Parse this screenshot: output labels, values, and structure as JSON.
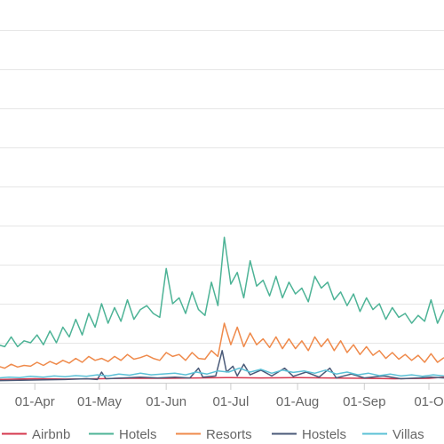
{
  "chart_data": {
    "type": "line",
    "title": "",
    "xlabel": "",
    "ylabel": "",
    "grid": true,
    "legend_position": "bottom",
    "x_range": [
      "2023-03-15",
      "2023-10-08"
    ],
    "ylim": [
      0,
      1000
    ],
    "y_ticks": [
      100,
      200,
      300,
      400,
      500,
      600,
      700,
      800,
      900,
      1000
    ],
    "x_ticks": [
      {
        "date": "2023-04-01",
        "label": "01-Apr"
      },
      {
        "date": "2023-05-01",
        "label": "01-May"
      },
      {
        "date": "2023-06-01",
        "label": "01-Jun"
      },
      {
        "date": "2023-07-01",
        "label": "01-Jul"
      },
      {
        "date": "2023-08-01",
        "label": "01-Aug"
      },
      {
        "date": "2023-09-01",
        "label": "01-Sep"
      },
      {
        "date": "2023-10-01",
        "label": "01-O"
      }
    ],
    "series": [
      {
        "name": "Airbnb",
        "color": "#d6374e",
        "points": [
          [
            "2023-03-15",
            6
          ],
          [
            "2023-04-01",
            8
          ],
          [
            "2023-04-15",
            7
          ],
          [
            "2023-05-01",
            8
          ],
          [
            "2023-05-15",
            9
          ],
          [
            "2023-06-01",
            9
          ],
          [
            "2023-06-15",
            10
          ],
          [
            "2023-07-01",
            11
          ],
          [
            "2023-07-15",
            10
          ],
          [
            "2023-08-01",
            11
          ],
          [
            "2023-08-15",
            10
          ],
          [
            "2023-09-01",
            9
          ],
          [
            "2023-09-15",
            8
          ],
          [
            "2023-10-01",
            9
          ],
          [
            "2023-10-08",
            12
          ]
        ]
      },
      {
        "name": "Hotels",
        "color": "#4db396",
        "points": [
          [
            "2023-03-15",
            95
          ],
          [
            "2023-03-18",
            90
          ],
          [
            "2023-03-21",
            115
          ],
          [
            "2023-03-24",
            90
          ],
          [
            "2023-03-27",
            105
          ],
          [
            "2023-03-30",
            100
          ],
          [
            "2023-04-02",
            120
          ],
          [
            "2023-04-05",
            95
          ],
          [
            "2023-04-08",
            130
          ],
          [
            "2023-04-11",
            100
          ],
          [
            "2023-04-14",
            140
          ],
          [
            "2023-04-17",
            115
          ],
          [
            "2023-04-20",
            160
          ],
          [
            "2023-04-23",
            120
          ],
          [
            "2023-04-26",
            175
          ],
          [
            "2023-04-29",
            140
          ],
          [
            "2023-05-02",
            200
          ],
          [
            "2023-05-05",
            150
          ],
          [
            "2023-05-08",
            190
          ],
          [
            "2023-05-11",
            155
          ],
          [
            "2023-05-14",
            210
          ],
          [
            "2023-05-17",
            160
          ],
          [
            "2023-05-20",
            185
          ],
          [
            "2023-05-23",
            195
          ],
          [
            "2023-05-26",
            175
          ],
          [
            "2023-05-29",
            165
          ],
          [
            "2023-06-01",
            290
          ],
          [
            "2023-06-04",
            200
          ],
          [
            "2023-06-07",
            215
          ],
          [
            "2023-06-10",
            175
          ],
          [
            "2023-06-13",
            230
          ],
          [
            "2023-06-16",
            185
          ],
          [
            "2023-06-19",
            170
          ],
          [
            "2023-06-22",
            255
          ],
          [
            "2023-06-25",
            195
          ],
          [
            "2023-06-28",
            370
          ],
          [
            "2023-07-01",
            250
          ],
          [
            "2023-07-04",
            280
          ],
          [
            "2023-07-07",
            215
          ],
          [
            "2023-07-10",
            310
          ],
          [
            "2023-07-13",
            245
          ],
          [
            "2023-07-16",
            260
          ],
          [
            "2023-07-19",
            220
          ],
          [
            "2023-07-22",
            270
          ],
          [
            "2023-07-25",
            215
          ],
          [
            "2023-07-28",
            255
          ],
          [
            "2023-07-31",
            225
          ],
          [
            "2023-08-03",
            240
          ],
          [
            "2023-08-06",
            205
          ],
          [
            "2023-08-09",
            270
          ],
          [
            "2023-08-12",
            240
          ],
          [
            "2023-08-15",
            255
          ],
          [
            "2023-08-18",
            210
          ],
          [
            "2023-08-21",
            230
          ],
          [
            "2023-08-24",
            195
          ],
          [
            "2023-08-27",
            225
          ],
          [
            "2023-08-30",
            180
          ],
          [
            "2023-09-02",
            215
          ],
          [
            "2023-09-05",
            185
          ],
          [
            "2023-09-08",
            200
          ],
          [
            "2023-09-11",
            160
          ],
          [
            "2023-09-14",
            190
          ],
          [
            "2023-09-17",
            165
          ],
          [
            "2023-09-20",
            175
          ],
          [
            "2023-09-23",
            150
          ],
          [
            "2023-09-26",
            170
          ],
          [
            "2023-09-29",
            155
          ],
          [
            "2023-10-02",
            210
          ],
          [
            "2023-10-05",
            150
          ],
          [
            "2023-10-08",
            185
          ]
        ]
      },
      {
        "name": "Resorts",
        "color": "#ef8a4b",
        "points": [
          [
            "2023-03-15",
            40
          ],
          [
            "2023-03-18",
            35
          ],
          [
            "2023-03-21",
            45
          ],
          [
            "2023-03-24",
            38
          ],
          [
            "2023-03-27",
            42
          ],
          [
            "2023-03-30",
            40
          ],
          [
            "2023-04-02",
            50
          ],
          [
            "2023-04-05",
            42
          ],
          [
            "2023-04-08",
            52
          ],
          [
            "2023-04-11",
            45
          ],
          [
            "2023-04-14",
            55
          ],
          [
            "2023-04-17",
            48
          ],
          [
            "2023-04-20",
            60
          ],
          [
            "2023-04-23",
            50
          ],
          [
            "2023-04-26",
            65
          ],
          [
            "2023-04-29",
            55
          ],
          [
            "2023-05-02",
            60
          ],
          [
            "2023-05-05",
            52
          ],
          [
            "2023-05-08",
            65
          ],
          [
            "2023-05-11",
            55
          ],
          [
            "2023-05-14",
            70
          ],
          [
            "2023-05-17",
            58
          ],
          [
            "2023-05-20",
            62
          ],
          [
            "2023-05-23",
            68
          ],
          [
            "2023-05-26",
            60
          ],
          [
            "2023-05-29",
            55
          ],
          [
            "2023-06-01",
            75
          ],
          [
            "2023-06-04",
            65
          ],
          [
            "2023-06-07",
            70
          ],
          [
            "2023-06-10",
            55
          ],
          [
            "2023-06-13",
            75
          ],
          [
            "2023-06-16",
            60
          ],
          [
            "2023-06-19",
            58
          ],
          [
            "2023-06-22",
            80
          ],
          [
            "2023-06-25",
            65
          ],
          [
            "2023-06-28",
            150
          ],
          [
            "2023-07-01",
            95
          ],
          [
            "2023-07-04",
            140
          ],
          [
            "2023-07-07",
            90
          ],
          [
            "2023-07-10",
            125
          ],
          [
            "2023-07-13",
            95
          ],
          [
            "2023-07-16",
            110
          ],
          [
            "2023-07-19",
            88
          ],
          [
            "2023-07-22",
            115
          ],
          [
            "2023-07-25",
            85
          ],
          [
            "2023-07-28",
            110
          ],
          [
            "2023-07-31",
            85
          ],
          [
            "2023-08-03",
            105
          ],
          [
            "2023-08-06",
            80
          ],
          [
            "2023-08-09",
            115
          ],
          [
            "2023-08-12",
            90
          ],
          [
            "2023-08-15",
            110
          ],
          [
            "2023-08-18",
            80
          ],
          [
            "2023-08-21",
            105
          ],
          [
            "2023-08-24",
            75
          ],
          [
            "2023-08-27",
            95
          ],
          [
            "2023-08-30",
            70
          ],
          [
            "2023-09-02",
            90
          ],
          [
            "2023-09-05",
            68
          ],
          [
            "2023-09-08",
            80
          ],
          [
            "2023-09-11",
            60
          ],
          [
            "2023-09-14",
            75
          ],
          [
            "2023-09-17",
            58
          ],
          [
            "2023-09-20",
            70
          ],
          [
            "2023-09-23",
            55
          ],
          [
            "2023-09-26",
            68
          ],
          [
            "2023-09-29",
            50
          ],
          [
            "2023-10-02",
            72
          ],
          [
            "2023-10-05",
            50
          ],
          [
            "2023-10-08",
            62
          ]
        ]
      },
      {
        "name": "Hostels",
        "color": "#4a5a78",
        "points": [
          [
            "2023-03-15",
            3
          ],
          [
            "2023-03-25",
            4
          ],
          [
            "2023-04-05",
            5
          ],
          [
            "2023-04-15",
            6
          ],
          [
            "2023-04-25",
            8
          ],
          [
            "2023-04-30",
            6
          ],
          [
            "2023-05-02",
            25
          ],
          [
            "2023-05-04",
            8
          ],
          [
            "2023-05-12",
            10
          ],
          [
            "2023-05-20",
            12
          ],
          [
            "2023-05-28",
            10
          ],
          [
            "2023-06-05",
            12
          ],
          [
            "2023-06-12",
            10
          ],
          [
            "2023-06-16",
            35
          ],
          [
            "2023-06-18",
            12
          ],
          [
            "2023-06-24",
            15
          ],
          [
            "2023-06-27",
            80
          ],
          [
            "2023-06-29",
            25
          ],
          [
            "2023-07-02",
            40
          ],
          [
            "2023-07-04",
            15
          ],
          [
            "2023-07-07",
            45
          ],
          [
            "2023-07-10",
            18
          ],
          [
            "2023-07-15",
            30
          ],
          [
            "2023-07-20",
            15
          ],
          [
            "2023-07-26",
            35
          ],
          [
            "2023-07-30",
            14
          ],
          [
            "2023-08-05",
            25
          ],
          [
            "2023-08-11",
            12
          ],
          [
            "2023-08-16",
            35
          ],
          [
            "2023-08-19",
            10
          ],
          [
            "2023-08-26",
            20
          ],
          [
            "2023-09-01",
            10
          ],
          [
            "2023-09-10",
            15
          ],
          [
            "2023-09-18",
            8
          ],
          [
            "2023-09-26",
            10
          ],
          [
            "2023-10-02",
            12
          ],
          [
            "2023-10-08",
            10
          ]
        ]
      },
      {
        "name": "Villas",
        "color": "#5bc0d6",
        "points": [
          [
            "2023-03-15",
            10
          ],
          [
            "2023-03-20",
            12
          ],
          [
            "2023-03-25",
            11
          ],
          [
            "2023-03-30",
            14
          ],
          [
            "2023-04-05",
            12
          ],
          [
            "2023-04-10",
            15
          ],
          [
            "2023-04-15",
            13
          ],
          [
            "2023-04-20",
            16
          ],
          [
            "2023-04-25",
            14
          ],
          [
            "2023-04-30",
            18
          ],
          [
            "2023-05-05",
            15
          ],
          [
            "2023-05-10",
            20
          ],
          [
            "2023-05-15",
            17
          ],
          [
            "2023-05-20",
            22
          ],
          [
            "2023-05-25",
            18
          ],
          [
            "2023-05-30",
            20
          ],
          [
            "2023-06-05",
            22
          ],
          [
            "2023-06-10",
            18
          ],
          [
            "2023-06-15",
            25
          ],
          [
            "2023-06-20",
            20
          ],
          [
            "2023-06-25",
            28
          ],
          [
            "2023-06-30",
            25
          ],
          [
            "2023-07-05",
            35
          ],
          [
            "2023-07-10",
            25
          ],
          [
            "2023-07-15",
            32
          ],
          [
            "2023-07-20",
            22
          ],
          [
            "2023-07-25",
            30
          ],
          [
            "2023-07-30",
            24
          ],
          [
            "2023-08-04",
            28
          ],
          [
            "2023-08-09",
            22
          ],
          [
            "2023-08-14",
            30
          ],
          [
            "2023-08-19",
            20
          ],
          [
            "2023-08-24",
            25
          ],
          [
            "2023-08-29",
            18
          ],
          [
            "2023-09-03",
            22
          ],
          [
            "2023-09-08",
            16
          ],
          [
            "2023-09-13",
            20
          ],
          [
            "2023-09-18",
            15
          ],
          [
            "2023-09-23",
            18
          ],
          [
            "2023-09-28",
            14
          ],
          [
            "2023-10-03",
            18
          ],
          [
            "2023-10-08",
            15
          ]
        ]
      }
    ]
  }
}
